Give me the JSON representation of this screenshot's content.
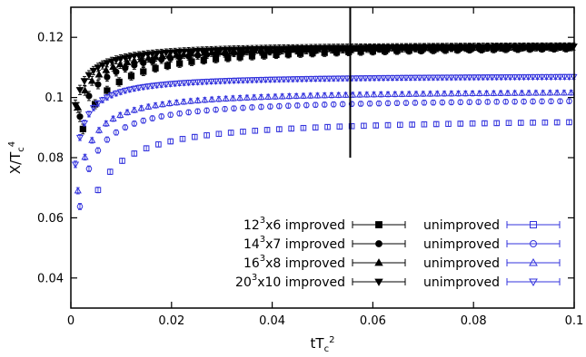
{
  "chart_data": {
    "type": "scatter",
    "xlabel": {
      "base": "tT",
      "sub": "c",
      "sup": "2"
    },
    "ylabel": {
      "base": "X/T",
      "sub": "c",
      "sup": "4"
    },
    "xlim": [
      0,
      0.1
    ],
    "ylim": [
      0.03,
      0.13
    ],
    "x_ticks": [
      0,
      0.02,
      0.04,
      0.06,
      0.08,
      0.1
    ],
    "x_tick_labels": [
      "0",
      "0.02",
      "0.04",
      "0.06",
      "0.08",
      "0.1"
    ],
    "y_ticks": [
      0.04,
      0.06,
      0.08,
      0.1,
      0.12
    ],
    "y_tick_labels": [
      "0.04",
      "0.06",
      "0.08",
      "0.1",
      "0.12"
    ],
    "grid": false,
    "legend_position": "bottom-right",
    "vertical_marker_x": 0.0555,
    "vertical_marker_y_range": [
      0.08,
      0.13
    ],
    "colors": {
      "improved": "#000000",
      "unimproved": "#3333dd"
    },
    "legend": [
      {
        "improved_label": "12",
        "improved_sup": "3",
        "improved_rest": "x6 improved",
        "unimproved_label": "unimproved",
        "marker_improved": "square-filled",
        "marker_unimproved": "square-open"
      },
      {
        "improved_label": "14",
        "improved_sup": "3",
        "improved_rest": "x7 improved",
        "unimproved_label": "unimproved",
        "marker_improved": "circle-filled",
        "marker_unimproved": "circle-open"
      },
      {
        "improved_label": "16",
        "improved_sup": "3",
        "improved_rest": "x8 improved",
        "unimproved_label": "unimproved",
        "marker_improved": "triangle-up-filled",
        "marker_unimproved": "triangle-up-open"
      },
      {
        "improved_label": "20",
        "improved_sup": "3",
        "improved_rest": "x10 improved",
        "unimproved_label": "unimproved",
        "marker_improved": "triangle-down-filled",
        "marker_unimproved": "triangle-down-open"
      }
    ],
    "series": [
      {
        "lattice": "12^3x6",
        "variant": "improved",
        "marker": "square-filled",
        "color": "#000000",
        "x_start": 0.0024,
        "x_step": 0.0024,
        "x_end": 0.1,
        "curve": {
          "a": 0.118,
          "b": 0.048,
          "c": 0.0035
        },
        "err": 0.0012
      },
      {
        "lattice": "14^3x7",
        "variant": "improved",
        "marker": "circle-filled",
        "color": "#000000",
        "x_start": 0.0018,
        "x_step": 0.0018,
        "x_end": 0.1,
        "curve": {
          "a": 0.118,
          "b": 0.04,
          "c": 0.0028
        },
        "err": 0.0012
      },
      {
        "lattice": "16^3x8",
        "variant": "improved",
        "marker": "triangle-up-filled",
        "color": "#000000",
        "x_start": 0.0014,
        "x_step": 0.0014,
        "x_end": 0.1,
        "curve": {
          "a": 0.1175,
          "b": 0.033,
          "c": 0.0024
        },
        "err": 0.0012
      },
      {
        "lattice": "20^3x10",
        "variant": "improved",
        "marker": "triangle-down-filled",
        "color": "#000000",
        "x_start": 0.0009,
        "x_step": 0.0009,
        "x_end": 0.1,
        "curve": {
          "a": 0.1175,
          "b": 0.03,
          "c": 0.0018
        },
        "err": 0.0012
      },
      {
        "lattice": "12^3x6",
        "variant": "unimproved",
        "marker": "square-open",
        "color": "#3333dd",
        "x_start": 0.0054,
        "x_step": 0.0024,
        "x_end": 0.1,
        "curve": {
          "a": 0.0935,
          "b": 0.097,
          "c": 0.0018
        },
        "err": 0.0008
      },
      {
        "lattice": "14^3x7",
        "variant": "unimproved",
        "marker": "circle-open",
        "color": "#3333dd",
        "x_start": 0.0018,
        "x_step": 0.0018,
        "x_end": 0.1,
        "curve": {
          "a": 0.1,
          "b": 0.077,
          "c": 0.0016
        },
        "err": 0.0008
      },
      {
        "lattice": "16^3x8",
        "variant": "unimproved",
        "marker": "triangle-up-open",
        "color": "#3333dd",
        "x_start": 0.0014,
        "x_step": 0.0014,
        "x_end": 0.1,
        "curve": {
          "a": 0.1025,
          "b": 0.067,
          "c": 0.0014
        },
        "err": 0.0008
      },
      {
        "lattice": "20^3x10",
        "variant": "unimproved",
        "marker": "triangle-down-open",
        "color": "#3333dd",
        "x_start": 0.0009,
        "x_step": 0.0009,
        "x_end": 0.1,
        "curve": {
          "a": 0.1075,
          "b": 0.052,
          "c": 0.0012
        },
        "err": 0.0008
      }
    ]
  }
}
